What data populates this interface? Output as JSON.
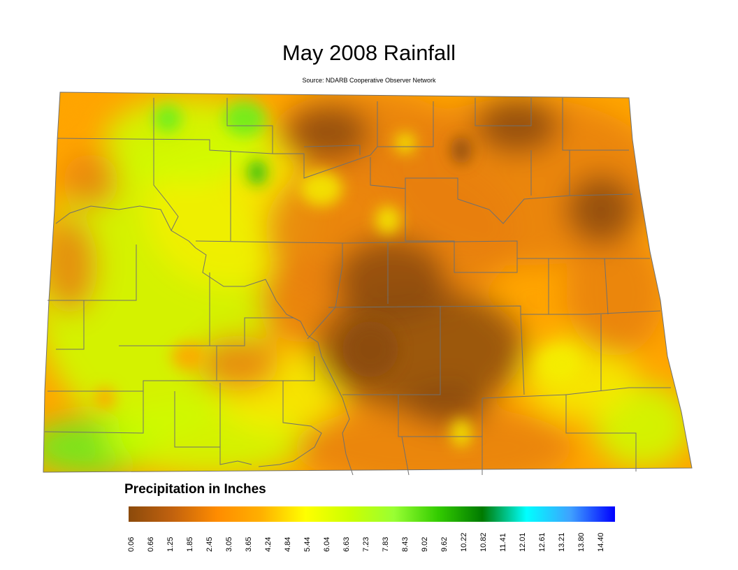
{
  "title": "May 2008 Rainfall",
  "subtitle": "Source: NDARB Cooperative Observer Network",
  "legend": {
    "title": "Precipitation in Inches",
    "ticks": [
      "0.06",
      "0.66",
      "1.25",
      "1.85",
      "2.45",
      "3.05",
      "3.65",
      "4.24",
      "4.84",
      "5.44",
      "6.04",
      "6.63",
      "7.23",
      "7.83",
      "8.43",
      "9.02",
      "9.62",
      "10.22",
      "10.82",
      "11.41",
      "12.01",
      "12.61",
      "13.21",
      "13.80",
      "14.40"
    ],
    "colors": [
      "#8b4a0c",
      "#c2620e",
      "#ff8c00",
      "#ffb000",
      "#ffff00",
      "#ccff00",
      "#99ff33",
      "#33cc00",
      "#007a00",
      "#00ffff",
      "#3fa0ff",
      "#0000ff"
    ]
  },
  "map_colors": {
    "dry": "#8b4a0c",
    "orange": "#e8800a",
    "light_orange": "#ffa500",
    "yellow": "#f5ef00",
    "yellow_green": "#ccff00",
    "green": "#66ee22",
    "dark_green": "#22bb11",
    "border": "#707070"
  }
}
